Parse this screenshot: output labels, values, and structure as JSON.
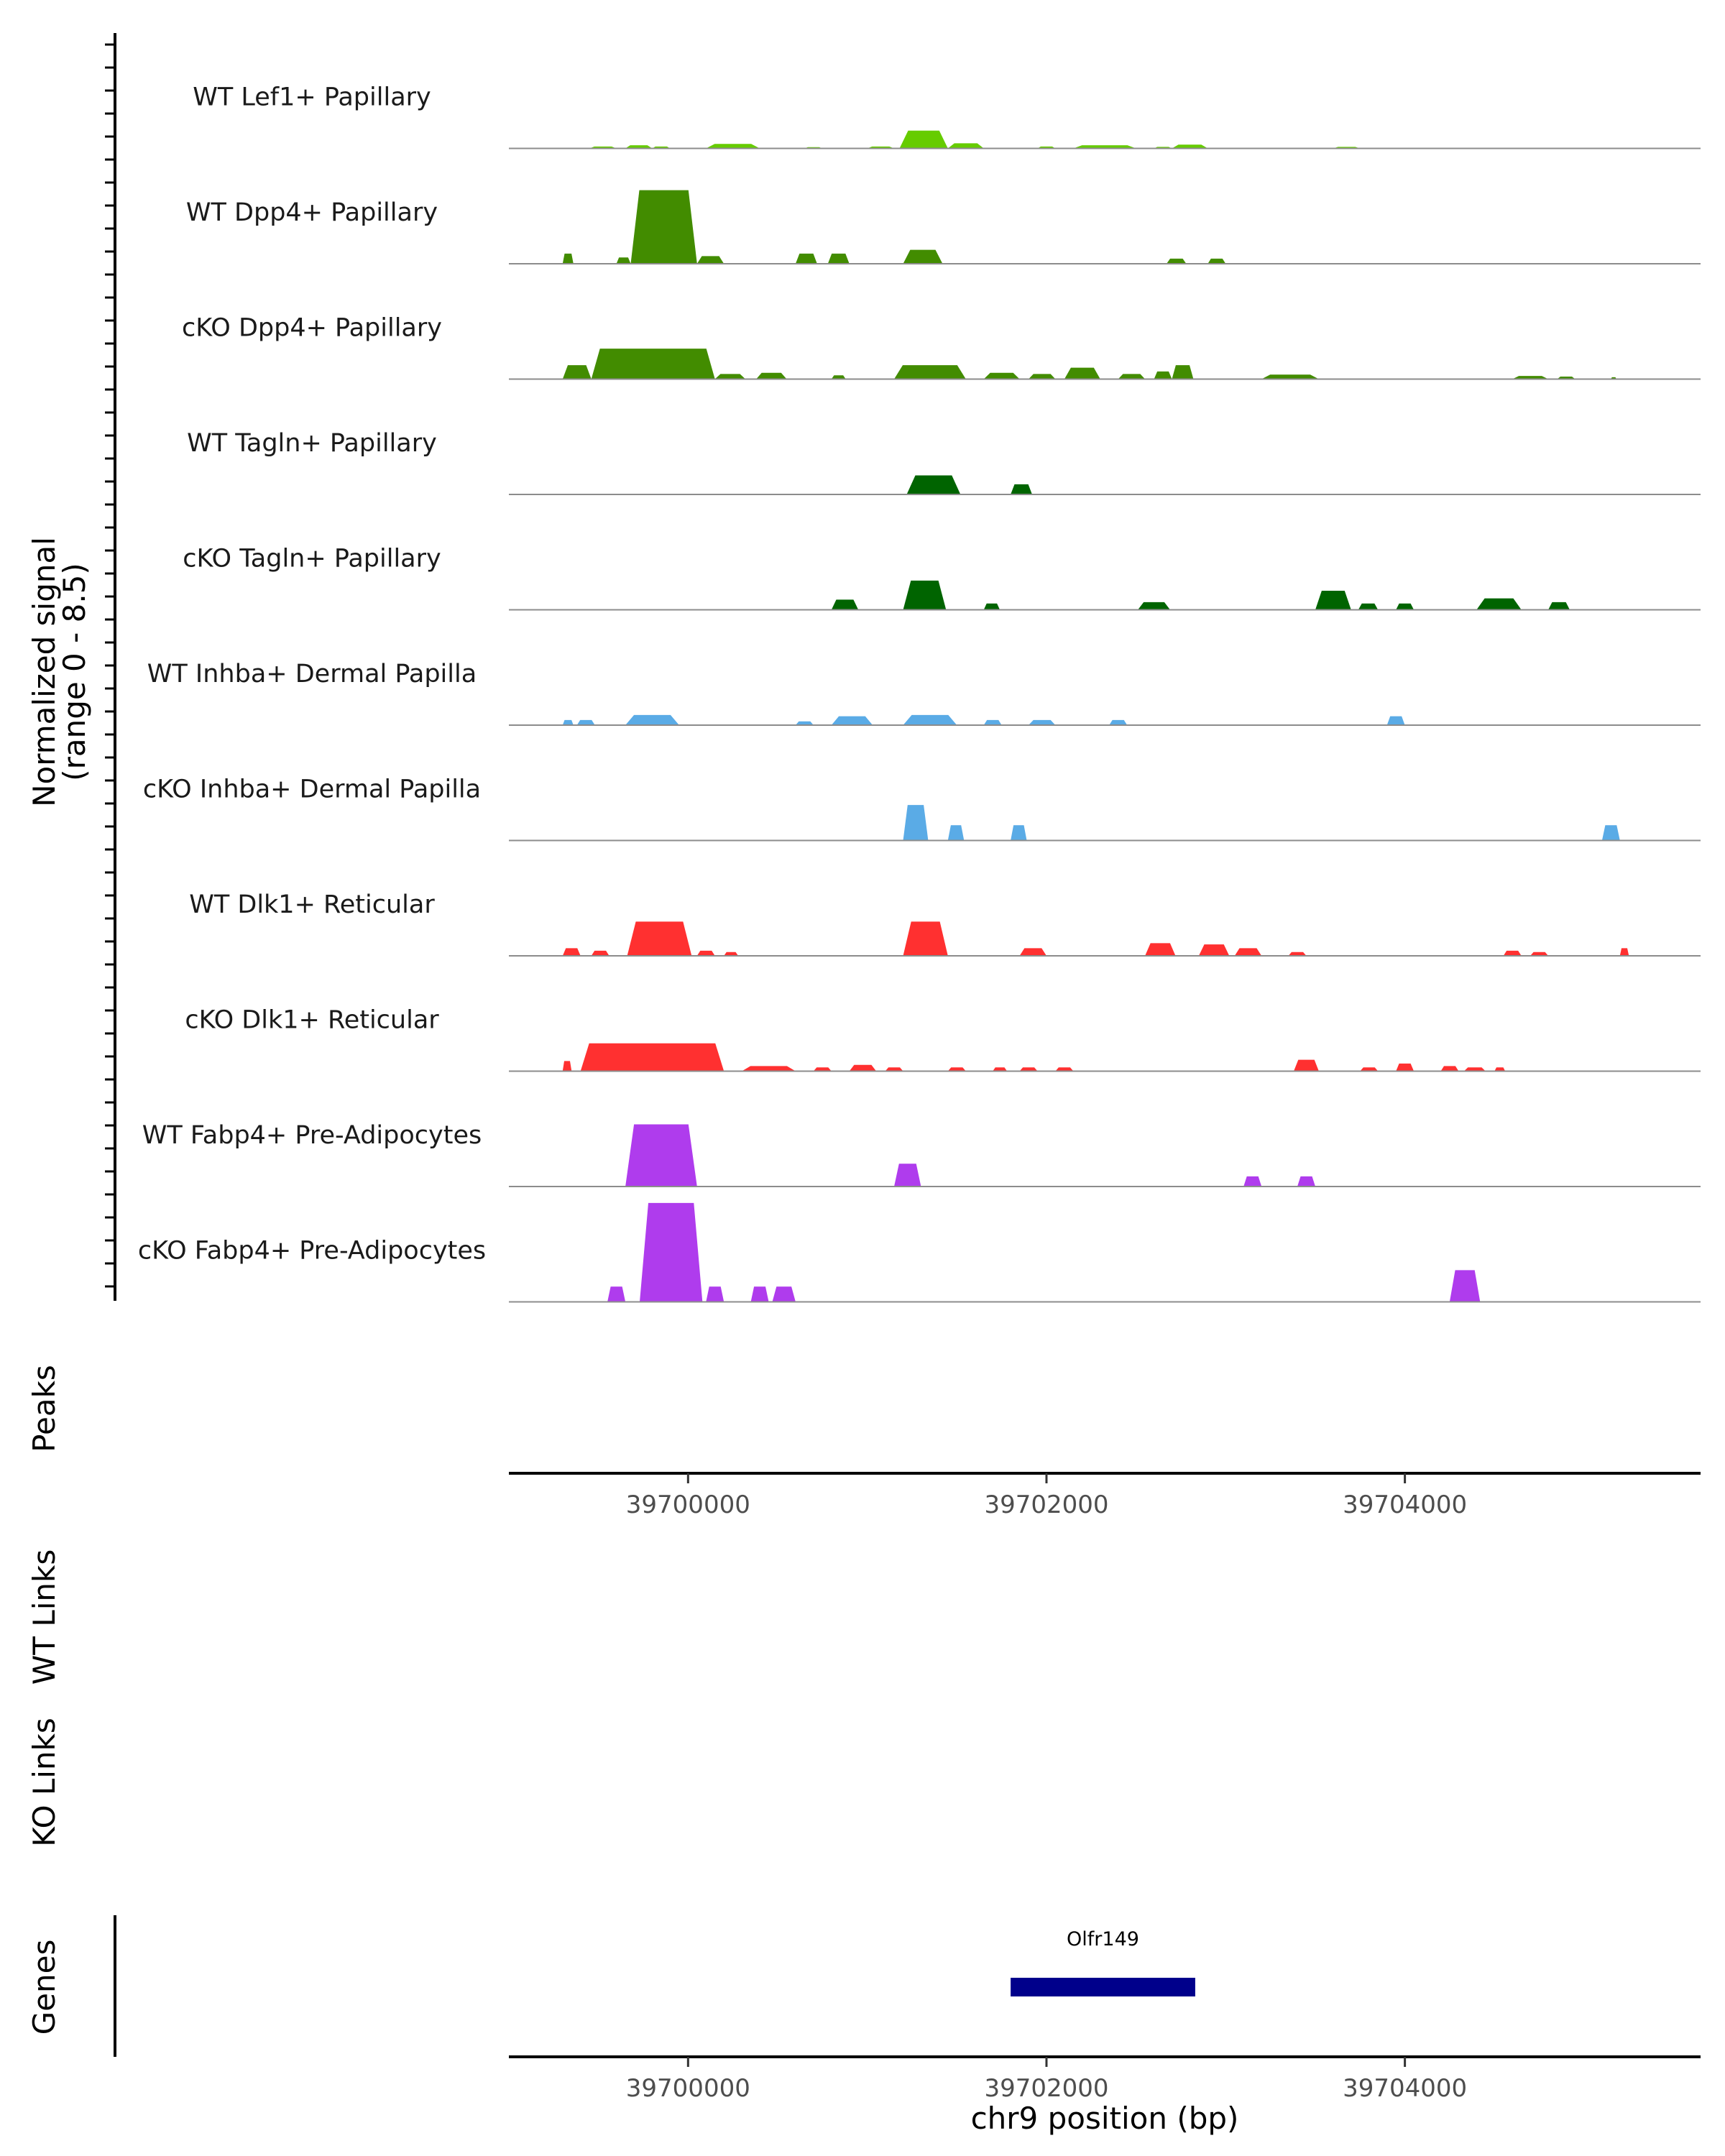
{
  "chart_data": {
    "type": "area",
    "title": "",
    "xlabel": "chr9 position (bp)",
    "coverage_ylabel": "Normalized signal",
    "coverage_range_label": "(range 0 - 8.5)",
    "ylim": [
      0,
      8.5
    ],
    "xlim": [
      39699000,
      39705650
    ],
    "x_ticks": [
      39700000,
      39702000,
      39704000
    ],
    "x_tick_labels": [
      "39700000",
      "39702000",
      "39704000"
    ],
    "track_labels": {
      "peaks": "Peaks",
      "wt_links": "WT Links",
      "ko_links": "KO Links",
      "genes": "Genes"
    },
    "genes": [
      {
        "name": "Olfr149",
        "start": 39701800,
        "end": 39702830
      }
    ],
    "series": [
      {
        "name": "WT Lef1+ Papillary",
        "color": "#66CC00",
        "peaks": [
          [
            39699450,
            39699600,
            0.15
          ],
          [
            39699650,
            39699800,
            0.25
          ],
          [
            39699800,
            39699900,
            0.15
          ],
          [
            39700100,
            39700400,
            0.35
          ],
          [
            39700650,
            39700750,
            0.1
          ],
          [
            39701000,
            39701150,
            0.15
          ],
          [
            39701180,
            39701450,
            1.4
          ],
          [
            39701450,
            39701650,
            0.4
          ],
          [
            39701950,
            39702050,
            0.15
          ],
          [
            39702150,
            39702500,
            0.25
          ],
          [
            39702600,
            39702700,
            0.12
          ],
          [
            39702700,
            39702900,
            0.3
          ],
          [
            39703600,
            39703750,
            0.12
          ]
        ]
      },
      {
        "name": "WT Dpp4+ Papillary",
        "color": "#428C00",
        "peaks": [
          [
            39699300,
            39699360,
            0.8
          ],
          [
            39699600,
            39699680,
            0.5
          ],
          [
            39699680,
            39700050,
            5.8
          ],
          [
            39700050,
            39700200,
            0.6
          ],
          [
            39700600,
            39700720,
            0.8
          ],
          [
            39700780,
            39700900,
            0.8
          ],
          [
            39701200,
            39701420,
            1.1
          ],
          [
            39702670,
            39702780,
            0.4
          ],
          [
            39702900,
            39703000,
            0.4
          ]
        ]
      },
      {
        "name": "cKO Dpp4+ Papillary",
        "color": "#428C00",
        "peaks": [
          [
            39699300,
            39699460,
            1.1
          ],
          [
            39699460,
            39700150,
            2.4
          ],
          [
            39700150,
            39700320,
            0.4
          ],
          [
            39700380,
            39700550,
            0.5
          ],
          [
            39700800,
            39700880,
            0.3
          ],
          [
            39701150,
            39701550,
            1.1
          ],
          [
            39701650,
            39701850,
            0.5
          ],
          [
            39701900,
            39702050,
            0.4
          ],
          [
            39702100,
            39702300,
            0.9
          ],
          [
            39702400,
            39702550,
            0.4
          ],
          [
            39702600,
            39702700,
            0.6
          ],
          [
            39702700,
            39702820,
            1.1
          ],
          [
            39703200,
            39703520,
            0.35
          ],
          [
            39704600,
            39704800,
            0.25
          ],
          [
            39704850,
            39704950,
            0.2
          ],
          [
            39705150,
            39705180,
            0.15
          ]
        ]
      },
      {
        "name": "WT Tagln+ Papillary",
        "color": "#006400",
        "peaks": [
          [
            39701220,
            39701520,
            1.5
          ],
          [
            39701800,
            39701920,
            0.8
          ]
        ]
      },
      {
        "name": "cKO Tagln+ Papillary",
        "color": "#006400",
        "peaks": [
          [
            39700800,
            39700950,
            0.8
          ],
          [
            39701200,
            39701440,
            2.3
          ],
          [
            39701650,
            39701740,
            0.5
          ],
          [
            39702510,
            39702690,
            0.6
          ],
          [
            39703500,
            39703700,
            1.5
          ],
          [
            39703740,
            39703850,
            0.5
          ],
          [
            39703950,
            39704050,
            0.5
          ],
          [
            39704400,
            39704650,
            0.9
          ],
          [
            39704800,
            39704920,
            0.6
          ]
        ]
      },
      {
        "name": "WT Inhba+ Dermal Papilla",
        "color": "#5AABE6",
        "peaks": [
          [
            39699300,
            39699360,
            0.4
          ],
          [
            39699380,
            39699480,
            0.4
          ],
          [
            39699650,
            39699950,
            0.8
          ],
          [
            39700600,
            39700700,
            0.3
          ],
          [
            39700800,
            39701030,
            0.7
          ],
          [
            39701200,
            39701500,
            0.8
          ],
          [
            39701650,
            39701750,
            0.4
          ],
          [
            39701900,
            39702050,
            0.4
          ],
          [
            39702350,
            39702450,
            0.4
          ],
          [
            39703900,
            39704000,
            0.7
          ]
        ]
      },
      {
        "name": "cKO Inhba+ Dermal Papilla",
        "color": "#5AABE6",
        "peaks": [
          [
            39701200,
            39701340,
            2.8
          ],
          [
            39701450,
            39701540,
            1.2
          ],
          [
            39701800,
            39701890,
            1.2
          ],
          [
            39705100,
            39705200,
            1.2
          ]
        ]
      },
      {
        "name": "WT Dlk1+ Reticular",
        "color": "#FF3030",
        "peaks": [
          [
            39699300,
            39699400,
            0.6
          ],
          [
            39699460,
            39699560,
            0.4
          ],
          [
            39699660,
            39700020,
            2.7
          ],
          [
            39700050,
            39700150,
            0.4
          ],
          [
            39700200,
            39700280,
            0.3
          ],
          [
            39701200,
            39701450,
            2.7
          ],
          [
            39701850,
            39702000,
            0.6
          ],
          [
            39702550,
            39702720,
            1.0
          ],
          [
            39702850,
            39703020,
            0.9
          ],
          [
            39703050,
            39703200,
            0.6
          ],
          [
            39703350,
            39703450,
            0.3
          ],
          [
            39704550,
            39704650,
            0.4
          ],
          [
            39704700,
            39704800,
            0.3
          ],
          [
            39705200,
            39705250,
            0.6
          ]
        ]
      },
      {
        "name": "cKO Dlk1+ Reticular",
        "color": "#FF3030",
        "peaks": [
          [
            39699300,
            39699350,
            0.8
          ],
          [
            39699400,
            39700200,
            2.2
          ],
          [
            39700300,
            39700600,
            0.4
          ],
          [
            39700700,
            39700800,
            0.3
          ],
          [
            39700900,
            39701050,
            0.5
          ],
          [
            39701100,
            39701200,
            0.3
          ],
          [
            39701450,
            39701550,
            0.3
          ],
          [
            39701700,
            39701780,
            0.3
          ],
          [
            39701850,
            39701950,
            0.3
          ],
          [
            39702050,
            39702150,
            0.3
          ],
          [
            39703380,
            39703520,
            0.9
          ],
          [
            39703750,
            39703850,
            0.3
          ],
          [
            39703950,
            39704050,
            0.6
          ],
          [
            39704200,
            39704300,
            0.4
          ],
          [
            39704330,
            39704450,
            0.3
          ],
          [
            39704500,
            39704560,
            0.3
          ]
        ]
      },
      {
        "name": "WT Fabp4+ Pre-Adipocytes",
        "color": "#AF3CED",
        "peaks": [
          [
            39699650,
            39700050,
            4.9
          ],
          [
            39701150,
            39701300,
            1.8
          ],
          [
            39703100,
            39703200,
            0.8
          ],
          [
            39703400,
            39703500,
            0.8
          ]
        ]
      },
      {
        "name": "cKO Fabp4+ Pre-Adipocytes",
        "color": "#AF3CED",
        "peaks": [
          [
            39699550,
            39699650,
            1.2
          ],
          [
            39699730,
            39700080,
            7.8
          ],
          [
            39700100,
            39700200,
            1.2
          ],
          [
            39700350,
            39700450,
            1.2
          ],
          [
            39700470,
            39700600,
            1.2
          ],
          [
            39704250,
            39704420,
            2.5
          ]
        ]
      }
    ]
  }
}
